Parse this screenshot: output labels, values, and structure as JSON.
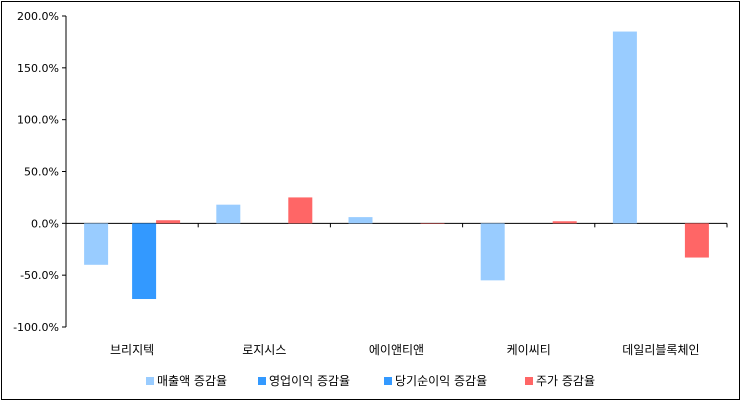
{
  "chart_data": {
    "type": "bar",
    "categories": [
      "브리지텍",
      "로지시스",
      "에이앤티앤",
      "케이씨티",
      "데일리블록체인"
    ],
    "series": [
      {
        "name": "매출액 증감율",
        "color": "#99ccff",
        "values": [
          -40,
          18,
          6,
          -55,
          185
        ]
      },
      {
        "name": "영업이익 증감율",
        "color": "#3399ff",
        "values": [
          null,
          null,
          null,
          null,
          null
        ]
      },
      {
        "name": "당기순이익 증감율",
        "color": "#3399ff",
        "values": [
          -73,
          null,
          null,
          null,
          null
        ]
      },
      {
        "name": "주가 증감율",
        "color": "#ff6666",
        "values": [
          3,
          25,
          0,
          2,
          -33
        ]
      }
    ],
    "yticks": [
      "200.0%",
      "150.0%",
      "100.0%",
      "50.0%",
      "0.0%",
      "-50.0%",
      "-100.0%"
    ],
    "ylim": [
      -100,
      200
    ],
    "legend_position": "bottom",
    "grid": false
  }
}
